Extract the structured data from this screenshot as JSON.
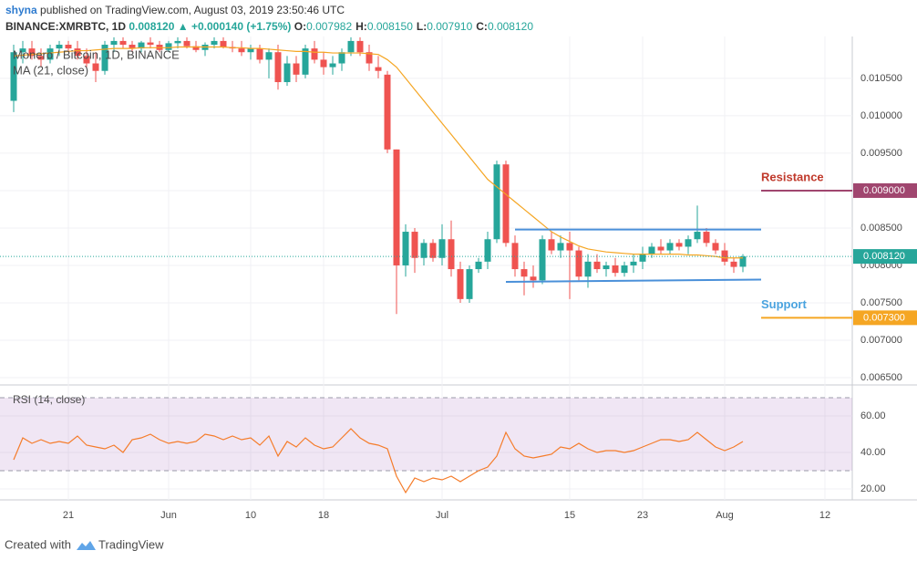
{
  "header": {
    "author": "shyna",
    "published": "published on TradingView.com, August 03, 2019 23:50:46 UTC",
    "symbol": "BINANCE:XMRBTC, 1D",
    "price": "0.008120",
    "change": "▲ +0.000140 (+1.75%)",
    "ohlc": [
      {
        "key": "O:",
        "value": "0.007982"
      },
      {
        "key": "H:",
        "value": "0.008150"
      },
      {
        "key": "L:",
        "value": "0.007910"
      },
      {
        "key": "C:",
        "value": "0.008120"
      }
    ]
  },
  "footer": {
    "text": "Created with",
    "brand": "TradingView"
  },
  "chart_data": [
    {
      "type": "candlestick",
      "title": "Monero / Bitcoin, 1D, BINANCE",
      "up_color": "#26a69a",
      "down_color": "#ef5350",
      "x": [
        "2019-05-15",
        "2019-05-16",
        "2019-05-17",
        "2019-05-18",
        "2019-05-19",
        "2019-05-20",
        "2019-05-21",
        "2019-05-22",
        "2019-05-23",
        "2019-05-24",
        "2019-05-25",
        "2019-05-26",
        "2019-05-27",
        "2019-05-28",
        "2019-05-29",
        "2019-05-30",
        "2019-05-31",
        "2019-06-01",
        "2019-06-02",
        "2019-06-03",
        "2019-06-04",
        "2019-06-05",
        "2019-06-06",
        "2019-06-07",
        "2019-06-08",
        "2019-06-09",
        "2019-06-10",
        "2019-06-11",
        "2019-06-12",
        "2019-06-13",
        "2019-06-14",
        "2019-06-15",
        "2019-06-16",
        "2019-06-17",
        "2019-06-18",
        "2019-06-19",
        "2019-06-20",
        "2019-06-21",
        "2019-06-22",
        "2019-06-23",
        "2019-06-24",
        "2019-06-25",
        "2019-06-26",
        "2019-06-27",
        "2019-06-28",
        "2019-06-29",
        "2019-06-30",
        "2019-07-01",
        "2019-07-02",
        "2019-07-03",
        "2019-07-04",
        "2019-07-05",
        "2019-07-06",
        "2019-07-07",
        "2019-07-08",
        "2019-07-09",
        "2019-07-10",
        "2019-07-11",
        "2019-07-12",
        "2019-07-13",
        "2019-07-14",
        "2019-07-15",
        "2019-07-16",
        "2019-07-17",
        "2019-07-18",
        "2019-07-19",
        "2019-07-20",
        "2019-07-21",
        "2019-07-22",
        "2019-07-23",
        "2019-07-24",
        "2019-07-25",
        "2019-07-26",
        "2019-07-27",
        "2019-07-28",
        "2019-07-29",
        "2019-07-30",
        "2019-07-31",
        "2019-08-01",
        "2019-08-02",
        "2019-08-03"
      ],
      "open": [
        0.0102,
        0.01085,
        0.0109,
        0.0108,
        0.01075,
        0.0109,
        0.01095,
        0.0109,
        0.0108,
        0.0107,
        0.0106,
        0.01095,
        0.011,
        0.01095,
        0.0109,
        0.01098,
        0.01095,
        0.01088,
        0.01097,
        0.011,
        0.01093,
        0.01088,
        0.01095,
        0.011,
        0.01092,
        0.0109,
        0.01085,
        0.0109,
        0.01075,
        0.01085,
        0.01045,
        0.0107,
        0.01055,
        0.0109,
        0.01075,
        0.01065,
        0.0107,
        0.01085,
        0.011,
        0.01085,
        0.01065,
        0.01055,
        0.00955,
        0.008,
        0.00845,
        0.0081,
        0.0083,
        0.0081,
        0.00835,
        0.00795,
        0.00755,
        0.00795,
        0.00805,
        0.00835,
        0.00935,
        0.0083,
        0.00795,
        0.00785,
        0.0078,
        0.00835,
        0.0082,
        0.0083,
        0.0082,
        0.00785,
        0.00805,
        0.00795,
        0.008,
        0.0079,
        0.008,
        0.00805,
        0.00815,
        0.00825,
        0.0082,
        0.0083,
        0.00825,
        0.00835,
        0.00845,
        0.0083,
        0.0082,
        0.00805,
        0.007982
      ],
      "high": [
        0.01095,
        0.011,
        0.011,
        0.0109,
        0.01095,
        0.011,
        0.011,
        0.011,
        0.0109,
        0.01085,
        0.011,
        0.01105,
        0.01105,
        0.011,
        0.011,
        0.01105,
        0.011,
        0.011,
        0.01105,
        0.01105,
        0.011,
        0.01098,
        0.01105,
        0.01105,
        0.011,
        0.011,
        0.01095,
        0.01095,
        0.0109,
        0.01095,
        0.0108,
        0.0108,
        0.01095,
        0.011,
        0.01085,
        0.0108,
        0.0109,
        0.01105,
        0.01105,
        0.01095,
        0.0108,
        0.0106,
        0.00955,
        0.00855,
        0.0085,
        0.00835,
        0.00835,
        0.00855,
        0.0086,
        0.00805,
        0.008,
        0.0081,
        0.00845,
        0.0094,
        0.0094,
        0.0084,
        0.00805,
        0.008,
        0.0084,
        0.00845,
        0.0084,
        0.00845,
        0.00825,
        0.00815,
        0.00815,
        0.00805,
        0.0081,
        0.00805,
        0.00815,
        0.00825,
        0.0083,
        0.00835,
        0.00835,
        0.00835,
        0.0084,
        0.0088,
        0.0085,
        0.00835,
        0.0083,
        0.0081,
        0.00815
      ],
      "low": [
        0.01005,
        0.0107,
        0.01075,
        0.01065,
        0.0107,
        0.0108,
        0.01085,
        0.01075,
        0.01065,
        0.01045,
        0.01055,
        0.01085,
        0.0109,
        0.01085,
        0.01085,
        0.0109,
        0.01085,
        0.01085,
        0.0109,
        0.0109,
        0.01085,
        0.0108,
        0.0109,
        0.0109,
        0.01085,
        0.0108,
        0.01075,
        0.0107,
        0.0105,
        0.01035,
        0.0104,
        0.01045,
        0.0105,
        0.0107,
        0.01055,
        0.01055,
        0.0106,
        0.0108,
        0.0108,
        0.0106,
        0.0105,
        0.0095,
        0.00735,
        0.00785,
        0.0079,
        0.008,
        0.00805,
        0.008,
        0.00785,
        0.0075,
        0.0075,
        0.0079,
        0.00795,
        0.0083,
        0.00825,
        0.00785,
        0.0076,
        0.0077,
        0.00775,
        0.00815,
        0.0081,
        0.00755,
        0.0078,
        0.0077,
        0.0079,
        0.00785,
        0.00785,
        0.00785,
        0.0079,
        0.00795,
        0.0081,
        0.00815,
        0.00815,
        0.0082,
        0.00815,
        0.0083,
        0.00825,
        0.00815,
        0.008,
        0.0079,
        0.00791
      ],
      "close": [
        0.01085,
        0.0109,
        0.0108,
        0.01075,
        0.0109,
        0.01095,
        0.0109,
        0.0108,
        0.0107,
        0.0106,
        0.01095,
        0.011,
        0.01095,
        0.0109,
        0.01098,
        0.01095,
        0.01088,
        0.01097,
        0.011,
        0.01093,
        0.01088,
        0.01095,
        0.011,
        0.01092,
        0.0109,
        0.01085,
        0.0109,
        0.01075,
        0.01085,
        0.01045,
        0.0107,
        0.01055,
        0.0109,
        0.01075,
        0.01065,
        0.0107,
        0.01085,
        0.011,
        0.01085,
        0.0107,
        0.0106,
        0.00955,
        0.008,
        0.00845,
        0.0081,
        0.0083,
        0.0081,
        0.00835,
        0.00795,
        0.00755,
        0.00795,
        0.00805,
        0.00835,
        0.00935,
        0.0083,
        0.00795,
        0.00785,
        0.0078,
        0.00835,
        0.0082,
        0.0083,
        0.0082,
        0.00785,
        0.00805,
        0.00795,
        0.008,
        0.0079,
        0.008,
        0.00805,
        0.00815,
        0.00825,
        0.0082,
        0.0083,
        0.00825,
        0.00835,
        0.00845,
        0.0083,
        0.0082,
        0.00805,
        0.00798,
        0.00812
      ],
      "series": [
        {
          "name": "MA (21, close)",
          "color": "#f5a623",
          "values": [
            0.0108,
            0.01081,
            0.01082,
            0.01083,
            0.01084,
            0.01085,
            0.01086,
            0.01087,
            0.01087,
            0.01088,
            0.01089,
            0.0109,
            0.0109,
            0.0109,
            0.01091,
            0.01091,
            0.01091,
            0.01091,
            0.01092,
            0.01092,
            0.01092,
            0.01092,
            0.01092,
            0.01092,
            0.01091,
            0.01091,
            0.0109,
            0.0109,
            0.01089,
            0.01088,
            0.01087,
            0.01086,
            0.01086,
            0.01085,
            0.01085,
            0.01084,
            0.01084,
            0.01084,
            0.01084,
            0.01083,
            0.01082,
            0.01075,
            0.01065,
            0.0105,
            0.01035,
            0.0102,
            0.01005,
            0.0099,
            0.00975,
            0.0096,
            0.00945,
            0.0093,
            0.00915,
            0.00905,
            0.00895,
            0.00885,
            0.00875,
            0.00865,
            0.00855,
            0.00845,
            0.00838,
            0.00832,
            0.00826,
            0.00822,
            0.0082,
            0.00818,
            0.00817,
            0.00816,
            0.00815,
            0.00815,
            0.00815,
            0.00815,
            0.00815,
            0.00815,
            0.00814,
            0.00814,
            0.00813,
            0.00812,
            0.0081,
            0.0081,
            0.0081
          ]
        }
      ],
      "xlim": [
        "2019-05-14",
        "2019-08-15"
      ],
      "xticks": [
        {
          "value": "2019-05-21",
          "label": "21"
        },
        {
          "value": "2019-06-01",
          "label": "Jun"
        },
        {
          "value": "2019-06-10",
          "label": "10"
        },
        {
          "value": "2019-06-18",
          "label": "18"
        },
        {
          "value": "2019-07-01",
          "label": "Jul"
        },
        {
          "value": "2019-07-15",
          "label": "15"
        },
        {
          "value": "2019-07-23",
          "label": "23"
        },
        {
          "value": "2019-08-01",
          "label": "Aug"
        },
        {
          "value": "2019-08-12",
          "label": "12"
        }
      ],
      "ylim": [
        0.006402,
        0.01106
      ],
      "yticks": [
        {
          "value": 0.0065,
          "label": "0.006500"
        },
        {
          "value": 0.007,
          "label": "0.007000"
        },
        {
          "value": 0.0075,
          "label": "0.007500"
        },
        {
          "value": 0.008,
          "label": "0.008000"
        },
        {
          "value": 0.0085,
          "label": "0.008500"
        },
        {
          "value": 0.009,
          "label": "0.009000"
        },
        {
          "value": 0.0095,
          "label": "0.009500"
        },
        {
          "value": 0.01,
          "label": "0.010000"
        },
        {
          "value": 0.0105,
          "label": "0.010500"
        }
      ],
      "grid": true,
      "last_price": {
        "value": 0.00812,
        "label": "0.008120",
        "color": "#26a69a"
      },
      "levels": [
        {
          "text": "Resistance",
          "value": 0.009,
          "label": "0.009000",
          "color": "#a0466f",
          "text_color": "#c0392b",
          "from": "2019-08-05"
        },
        {
          "text": "Support",
          "value": 0.0073,
          "label": "0.007300",
          "color": "#f5a623",
          "text_color": "#4aa3df",
          "from": "2019-08-05"
        }
      ],
      "trendlines": [
        {
          "color": "#4a90d9",
          "x": [
            "2019-07-09",
            "2019-08-05"
          ],
          "y": [
            0.00848,
            0.00848
          ]
        },
        {
          "color": "#4a90d9",
          "x": [
            "2019-07-08",
            "2019-08-05"
          ],
          "y": [
            0.00778,
            0.00781
          ]
        }
      ]
    },
    {
      "type": "line",
      "title": "RSI (14, close)",
      "color": "#f57c2a",
      "band": [
        30,
        70
      ],
      "band_color": "#9b59b6",
      "values": [
        36,
        48,
        45,
        47,
        45,
        46,
        45,
        49,
        44,
        43,
        42,
        44,
        40,
        47,
        48,
        50,
        47,
        45,
        46,
        45,
        46,
        50,
        49,
        47,
        49,
        47,
        48,
        44,
        49,
        38,
        46,
        43,
        48,
        44,
        42,
        43,
        48,
        53,
        48,
        45,
        44,
        42,
        27,
        18,
        26,
        24,
        26,
        25,
        27,
        24,
        27,
        30,
        32,
        38,
        51,
        42,
        38,
        37,
        38,
        39,
        43,
        42,
        45,
        42,
        40,
        41,
        41,
        40,
        41,
        43,
        45,
        47,
        47,
        46,
        47,
        51,
        47,
        43,
        41,
        43,
        46
      ],
      "ylim": [
        14,
        77
      ],
      "yticks": [
        {
          "value": 20,
          "label": "20.00"
        },
        {
          "value": 40,
          "label": "40.00"
        },
        {
          "value": 60,
          "label": "60.00"
        }
      ]
    }
  ]
}
